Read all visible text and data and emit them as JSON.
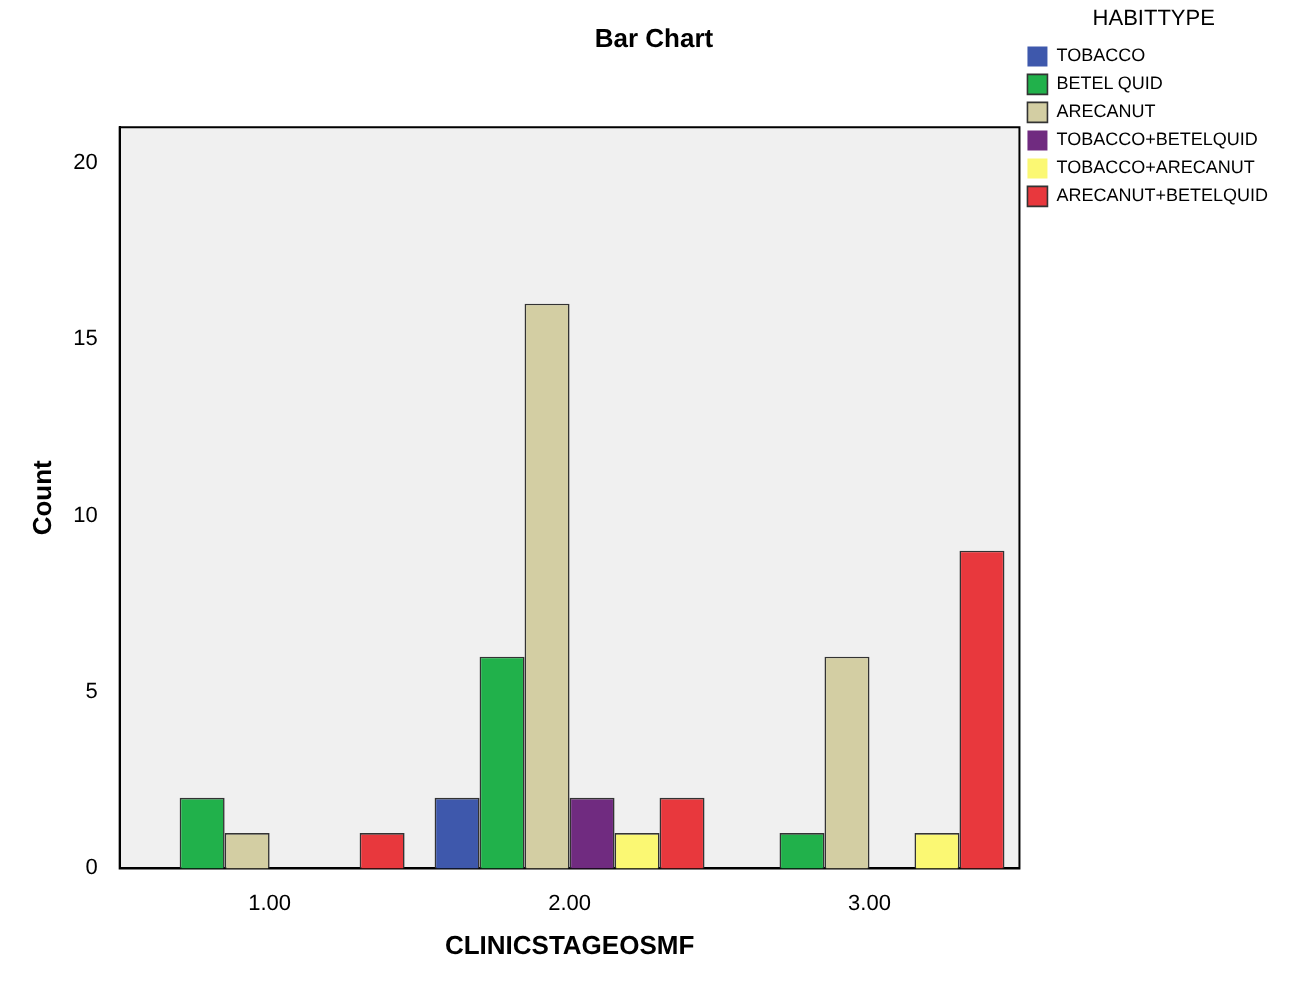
{
  "chart_data": {
    "type": "bar",
    "title": "Bar Chart",
    "xlabel": "CLINICSTAGEOSMF",
    "ylabel": "Count",
    "legend_title": "HABITTYPE",
    "legend": "right",
    "categories": [
      "1.00",
      "2.00",
      "3.00"
    ],
    "series": [
      {
        "name": "TOBACCO",
        "color": "#3e58ac",
        "values": [
          0,
          2,
          0
        ]
      },
      {
        "name": "BETEL QUID",
        "color": "#21b14b",
        "values": [
          2,
          6,
          1
        ]
      },
      {
        "name": "ARECANUT",
        "color": "#d3cea3",
        "values": [
          1,
          16,
          6
        ]
      },
      {
        "name": "TOBACCO+BETELQUID",
        "color": "#702b80",
        "values": [
          0,
          2,
          0
        ]
      },
      {
        "name": "TOBACCO+ARECANUT",
        "color": "#fbf873",
        "values": [
          0,
          1,
          1
        ]
      },
      {
        "name": "ARECANUT+BETELQUID",
        "color": "#e8383d",
        "values": [
          1,
          2,
          9
        ]
      }
    ],
    "ylim": [
      0,
      21
    ],
    "yticks": [
      0,
      5,
      10,
      15,
      20
    ],
    "grid": false
  }
}
